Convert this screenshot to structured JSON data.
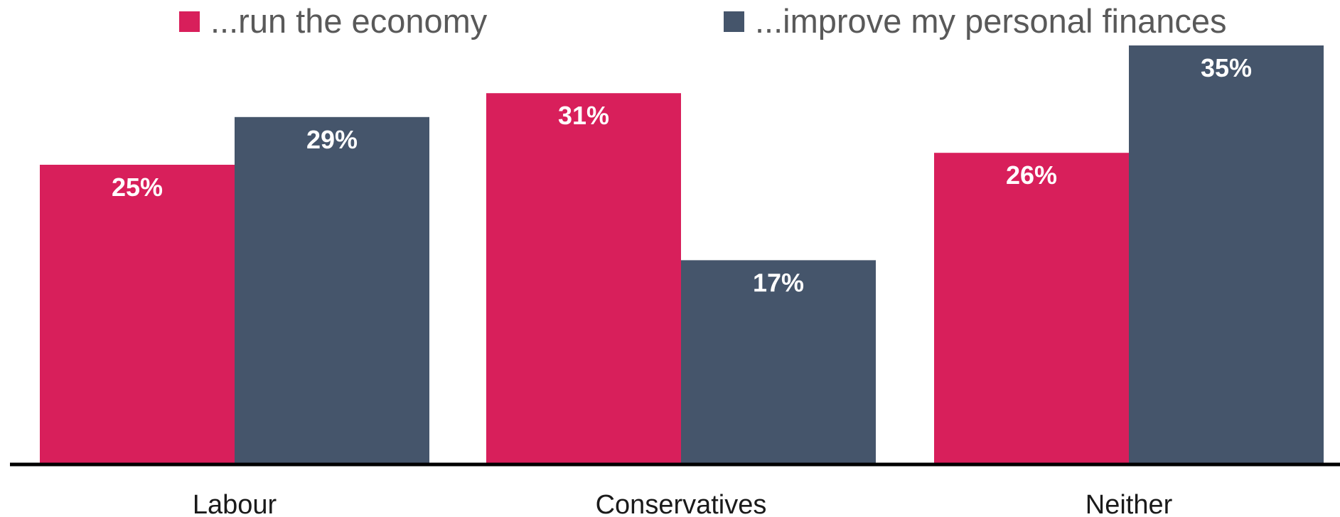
{
  "chart_data": {
    "type": "bar",
    "title": "",
    "xlabel": "",
    "ylabel": "",
    "categories": [
      "Labour",
      "Conservatives",
      "Neither"
    ],
    "series": [
      {
        "name": "...run the economy",
        "values": [
          25,
          31,
          26
        ],
        "color": "#d81f5b"
      },
      {
        "name": "...improve my personal finances",
        "values": [
          29,
          17,
          35
        ],
        "color": "#45556b"
      }
    ],
    "value_suffix": "%",
    "ylim": [
      0,
      35
    ],
    "grid": false,
    "legend_position": "top",
    "axis_color": "#000000"
  }
}
